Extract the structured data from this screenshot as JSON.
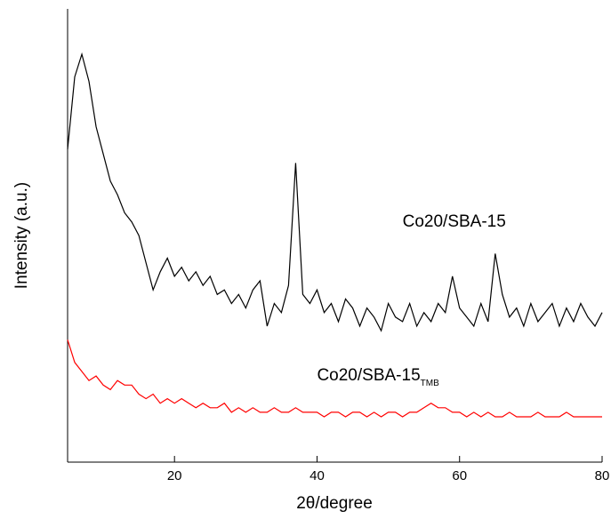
{
  "chart_data": {
    "type": "line",
    "x_label": "2θ/degree",
    "y_label": "Intensity (a.u.)",
    "x": [
      5,
      6,
      7,
      8,
      9,
      10,
      11,
      12,
      13,
      14,
      15,
      16,
      17,
      18,
      19,
      20,
      21,
      22,
      23,
      24,
      25,
      26,
      27,
      28,
      29,
      30,
      31,
      32,
      33,
      34,
      35,
      36,
      37,
      38,
      39,
      40,
      41,
      42,
      43,
      44,
      45,
      46,
      47,
      48,
      49,
      50,
      51,
      52,
      53,
      54,
      55,
      56,
      57,
      58,
      59,
      60,
      61,
      62,
      63,
      64,
      65,
      66,
      67,
      68,
      69,
      70,
      71,
      72,
      73,
      74,
      75,
      76,
      77,
      78,
      79,
      80
    ],
    "series": [
      {
        "name": "Co20/SBA-15",
        "color": "#000000",
        "values": [
          69,
          85,
          90,
          84,
          74,
          68,
          62,
          59,
          55,
          53,
          50,
          44,
          38,
          42,
          45,
          41,
          43,
          40,
          42,
          39,
          41,
          37,
          38,
          35,
          37,
          34,
          38,
          40,
          30,
          35,
          33,
          39,
          66,
          37,
          35,
          38,
          33,
          35,
          31,
          36,
          34,
          30,
          34,
          32,
          29,
          35,
          32,
          31,
          35,
          30,
          33,
          31,
          35,
          33,
          41,
          34,
          32,
          30,
          35,
          31,
          46,
          37,
          32,
          34,
          30,
          35,
          31,
          33,
          35,
          30,
          34,
          31,
          35,
          32,
          30,
          33
        ],
        "label_x": 52,
        "label_y": 52
      },
      {
        "name": "Co20/SBA-15",
        "name_subscript": "TMB",
        "color": "#ff0000",
        "values": [
          27,
          22,
          20,
          18,
          19,
          17,
          16,
          18,
          17,
          17,
          15,
          14,
          15,
          13,
          14,
          13,
          14,
          13,
          12,
          13,
          12,
          12,
          13,
          11,
          12,
          11,
          12,
          11,
          11,
          12,
          11,
          11,
          12,
          11,
          11,
          11,
          10,
          11,
          11,
          10,
          11,
          11,
          10,
          11,
          10,
          11,
          11,
          10,
          11,
          11,
          12,
          13,
          12,
          12,
          11,
          11,
          10,
          11,
          10,
          11,
          10,
          10,
          11,
          10,
          10,
          10,
          11,
          10,
          10,
          10,
          11,
          10,
          10,
          10,
          10,
          10
        ],
        "label_x": 40,
        "label_y": 18
      }
    ],
    "xlim": [
      5,
      80
    ],
    "xticks": [
      20,
      40,
      60,
      80
    ],
    "ylim": [
      0,
      100
    ]
  }
}
